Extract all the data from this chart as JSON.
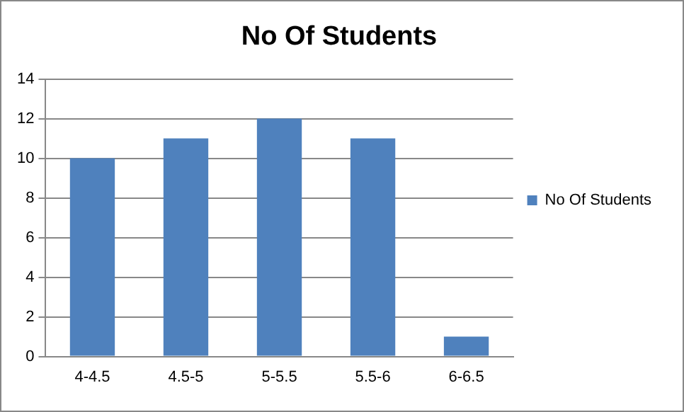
{
  "chart_data": {
    "type": "bar",
    "title": "No Of Students",
    "categories": [
      "4-4.5",
      "4.5-5",
      "5-5.5",
      "5.5-6",
      "6-6.5"
    ],
    "series": [
      {
        "name": "No Of Students",
        "color": "#4f81bd",
        "values": [
          10,
          11,
          12,
          11,
          1
        ]
      }
    ],
    "ylim": [
      0,
      14
    ],
    "yticks": [
      0,
      2,
      4,
      6,
      8,
      10,
      12,
      14
    ],
    "grid": "y",
    "legend": "right"
  }
}
